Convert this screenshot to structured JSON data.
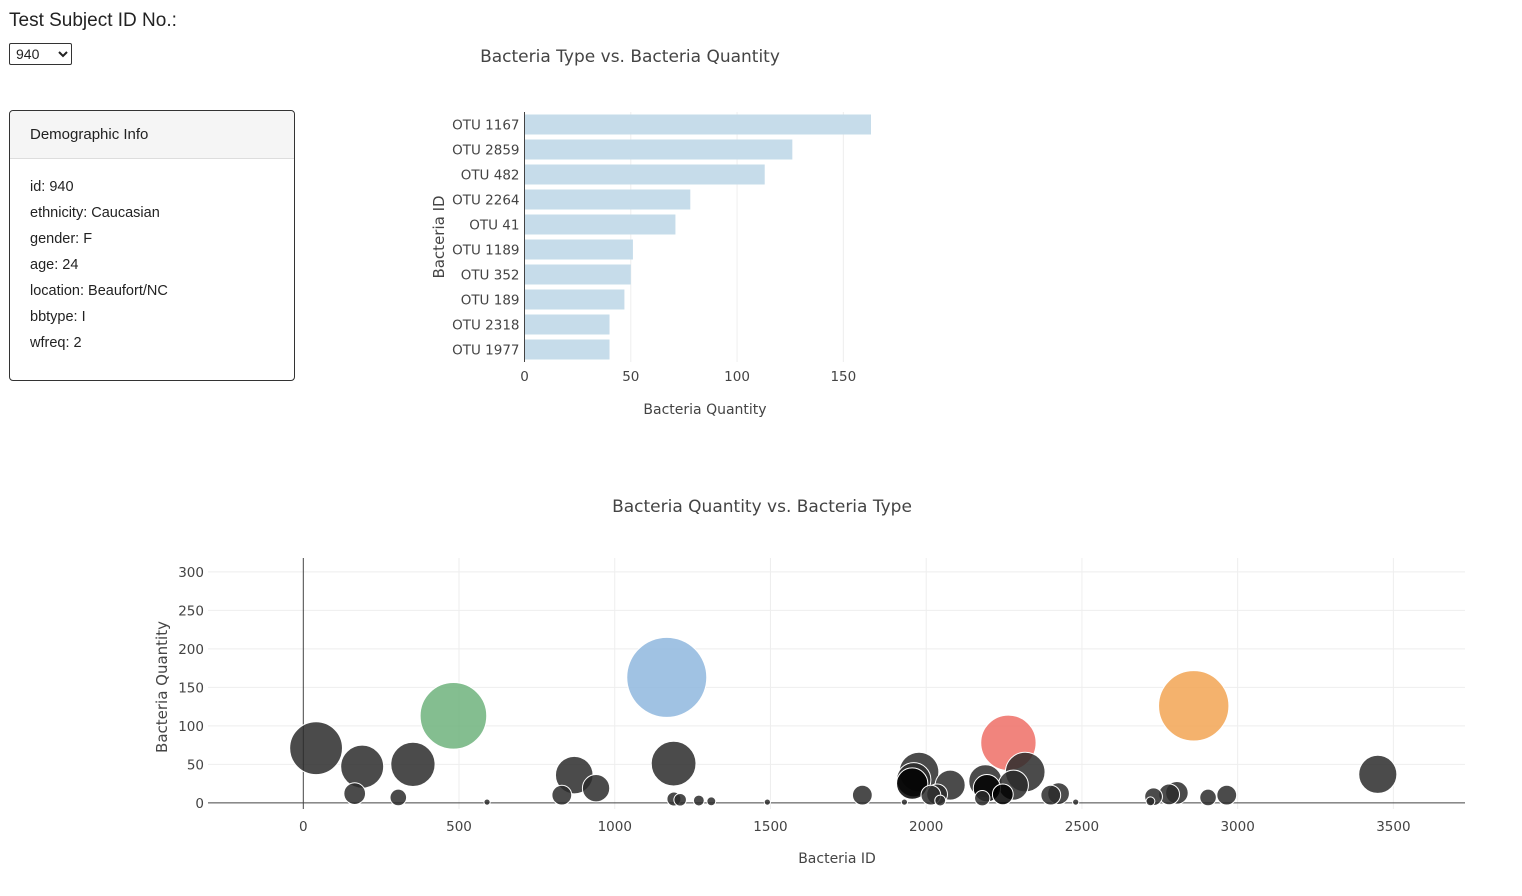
{
  "header": {
    "label": "Test Subject ID No.:"
  },
  "select": {
    "value": "940",
    "options": [
      "940"
    ]
  },
  "demographic": {
    "title": "Demographic Info",
    "lines": [
      "id: 940",
      "ethnicity: Caucasian",
      "gender: F",
      "age: 24",
      "location: Beaufort/NC",
      "bbtype: I",
      "wfreq: 2"
    ]
  },
  "chart_data": [
    {
      "type": "bar",
      "orientation": "horizontal",
      "title": "Bacteria Type vs. Bacteria Quantity",
      "xlabel": "Bacteria Quantity",
      "ylabel": "Bacteria ID",
      "categories": [
        "OTU 1167",
        "OTU 2859",
        "OTU 482",
        "OTU 2264",
        "OTU 41",
        "OTU 1189",
        "OTU 352",
        "OTU 189",
        "OTU 2318",
        "OTU 1977"
      ],
      "values": [
        163,
        126,
        113,
        78,
        71,
        51,
        50,
        47,
        40,
        40
      ],
      "xticks": [
        0,
        50,
        100,
        150
      ],
      "xlim": [
        0,
        171
      ],
      "color": "#c6dcea"
    },
    {
      "type": "scatter",
      "subtype": "bubble",
      "title": "Bacteria Quantity vs. Bacteria Type",
      "xlabel": "Bacteria ID",
      "ylabel": "Bacteria Quantity",
      "xlim": [
        -306,
        3730
      ],
      "ylim": [
        -8,
        318
      ],
      "xticks": [
        0,
        500,
        1000,
        1500,
        2000,
        2500,
        3000,
        3500
      ],
      "yticks": [
        0,
        50,
        100,
        150,
        200,
        250,
        300
      ],
      "grid": true,
      "points": [
        {
          "x": 1167,
          "y": 163,
          "color": "#8fb7de"
        },
        {
          "x": 2859,
          "y": 126,
          "color": "#f2a453"
        },
        {
          "x": 482,
          "y": 113,
          "color": "#6fb37c"
        },
        {
          "x": 2264,
          "y": 78,
          "color": "#ef6e66"
        },
        {
          "x": 41,
          "y": 71,
          "color": "#2b2b2b"
        },
        {
          "x": 1189,
          "y": 51,
          "color": "#2b2b2b"
        },
        {
          "x": 352,
          "y": 50,
          "color": "#2b2b2b"
        },
        {
          "x": 189,
          "y": 47,
          "color": "#2b2b2b"
        },
        {
          "x": 2318,
          "y": 40,
          "color": "#2b2b2b"
        },
        {
          "x": 1977,
          "y": 40,
          "color": "#2b2b2b"
        },
        {
          "x": 3450,
          "y": 37,
          "color": "#2b2b2b"
        },
        {
          "x": 870,
          "y": 36,
          "color": "#2b2b2b"
        },
        {
          "x": 1960,
          "y": 30,
          "color": "#2b2b2b"
        },
        {
          "x": 2190,
          "y": 28,
          "color": "#2b2b2b"
        },
        {
          "x": 1955,
          "y": 25,
          "color": "#000000"
        },
        {
          "x": 2280,
          "y": 23,
          "color": "#2b2b2b"
        },
        {
          "x": 2077,
          "y": 23,
          "color": "#2b2b2b"
        },
        {
          "x": 2195,
          "y": 19,
          "color": "#000000"
        },
        {
          "x": 940,
          "y": 19,
          "color": "#2b2b2b"
        },
        {
          "x": 2805,
          "y": 13,
          "color": "#2b2b2b"
        },
        {
          "x": 2425,
          "y": 12,
          "color": "#2b2b2b"
        },
        {
          "x": 165,
          "y": 12,
          "color": "#2b2b2b"
        },
        {
          "x": 2246,
          "y": 11,
          "color": "#000000"
        },
        {
          "x": 2780,
          "y": 11,
          "color": "#2b2b2b"
        },
        {
          "x": 2035,
          "y": 11,
          "color": "#2b2b2b"
        },
        {
          "x": 2015,
          "y": 10,
          "color": "#2b2b2b"
        },
        {
          "x": 2400,
          "y": 10,
          "color": "#2b2b2b"
        },
        {
          "x": 2965,
          "y": 10,
          "color": "#2b2b2b"
        },
        {
          "x": 1795,
          "y": 10,
          "color": "#2b2b2b"
        },
        {
          "x": 830,
          "y": 10,
          "color": "#2b2b2b"
        },
        {
          "x": 2730,
          "y": 8,
          "color": "#2b2b2b"
        },
        {
          "x": 2905,
          "y": 7,
          "color": "#2b2b2b"
        },
        {
          "x": 305,
          "y": 7,
          "color": "#2b2b2b"
        },
        {
          "x": 2180,
          "y": 6,
          "color": "#2b2b2b"
        },
        {
          "x": 1190,
          "y": 5,
          "color": "#2b2b2b"
        },
        {
          "x": 1210,
          "y": 4,
          "color": "#2b2b2b"
        },
        {
          "x": 1270,
          "y": 3,
          "color": "#2b2b2b"
        },
        {
          "x": 2045,
          "y": 3,
          "color": "#2b2b2b"
        },
        {
          "x": 1310,
          "y": 2,
          "color": "#2b2b2b"
        },
        {
          "x": 2720,
          "y": 2,
          "color": "#2b2b2b"
        },
        {
          "x": 590,
          "y": 1,
          "color": "#2b2b2b"
        },
        {
          "x": 1490,
          "y": 1,
          "color": "#2b2b2b"
        },
        {
          "x": 1930,
          "y": 1,
          "color": "#2b2b2b"
        },
        {
          "x": 2480,
          "y": 1,
          "color": "#2b2b2b"
        }
      ]
    }
  ]
}
